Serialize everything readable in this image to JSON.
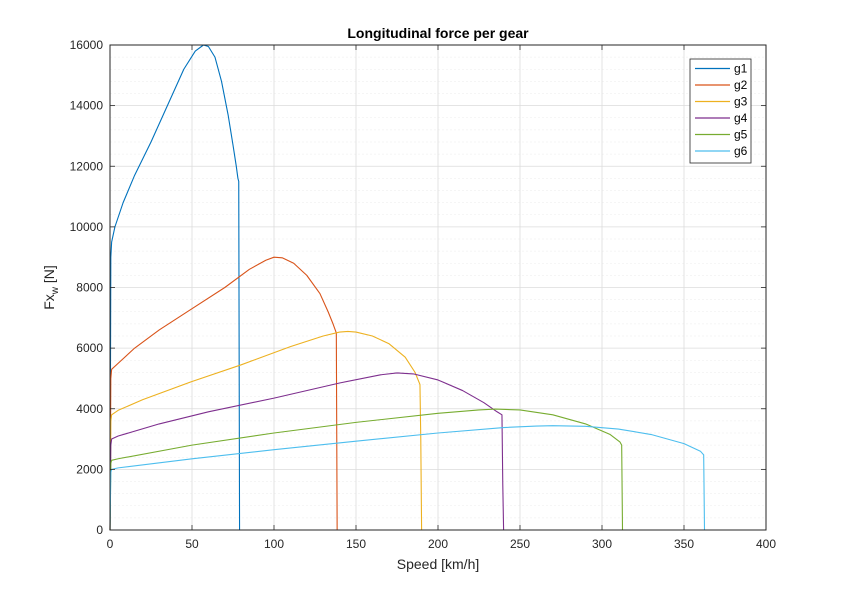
{
  "chart_data": {
    "type": "line",
    "title": "Longitudinal force per gear",
    "xlabel": "Speed [km/h]",
    "ylabel_main": "Fx",
    "ylabel_sub": "w",
    "ylabel_unit": " [N]",
    "xlim": [
      0,
      400
    ],
    "ylim": [
      0,
      16000
    ],
    "xticks": [
      0,
      50,
      100,
      150,
      200,
      250,
      300,
      350,
      400
    ],
    "yticks": [
      0,
      2000,
      4000,
      6000,
      8000,
      10000,
      12000,
      14000,
      16000
    ],
    "grid": "major and minor (y)",
    "legend_position": "top-right",
    "series": [
      {
        "name": "g1",
        "color": "#0072BD",
        "x": [
          0,
          0.5,
          1,
          3,
          8,
          15,
          25,
          35,
          45,
          52,
          57,
          60,
          64,
          68,
          72,
          75,
          77,
          78,
          78.5,
          79,
          80,
          140,
          400
        ],
        "y": [
          0,
          9000,
          9500,
          10000,
          10800,
          11700,
          12800,
          14000,
          15200,
          15800,
          16000,
          15950,
          15600,
          14800,
          13700,
          12700,
          12000,
          11600,
          11500,
          0,
          0,
          0,
          0
        ]
      },
      {
        "name": "g2",
        "color": "#D95319",
        "x": [
          0,
          0.5,
          1,
          5,
          15,
          30,
          50,
          70,
          85,
          95,
          100,
          105,
          112,
          120,
          128,
          133,
          136,
          138,
          138.5,
          139,
          140,
          190
        ],
        "y": [
          0,
          5000,
          5300,
          5500,
          6000,
          6600,
          7300,
          8000,
          8600,
          8900,
          9000,
          8980,
          8800,
          8400,
          7800,
          7200,
          6800,
          6500,
          0,
          0,
          0,
          0
        ]
      },
      {
        "name": "g3",
        "color": "#EDB120",
        "x": [
          0,
          0.5,
          1,
          5,
          20,
          50,
          80,
          110,
          130,
          140,
          145,
          150,
          160,
          170,
          180,
          186,
          189,
          189.5,
          190,
          191,
          240
        ],
        "y": [
          0,
          3600,
          3800,
          3950,
          4300,
          4900,
          5450,
          6050,
          6400,
          6530,
          6550,
          6530,
          6400,
          6150,
          5700,
          5200,
          4800,
          3000,
          0,
          0,
          0
        ]
      },
      {
        "name": "g4",
        "color": "#7E2F8E",
        "x": [
          0,
          0.5,
          1,
          5,
          30,
          60,
          100,
          140,
          165,
          175,
          185,
          200,
          215,
          228,
          236,
          239,
          239.5,
          240,
          241,
          310
        ],
        "y": [
          0,
          2800,
          3000,
          3100,
          3500,
          3900,
          4350,
          4850,
          5120,
          5180,
          5150,
          4950,
          4600,
          4200,
          3900,
          3800,
          1500,
          0,
          0,
          0
        ]
      },
      {
        "name": "g5",
        "color": "#77AC30",
        "x": [
          0,
          0.5,
          1,
          5,
          50,
          100,
          150,
          200,
          225,
          235,
          250,
          270,
          290,
          305,
          311,
          312,
          312.5,
          313,
          314,
          360
        ],
        "y": [
          0,
          2200,
          2300,
          2350,
          2800,
          3200,
          3550,
          3850,
          3960,
          3990,
          3960,
          3800,
          3500,
          3150,
          2900,
          2800,
          0,
          0,
          0,
          0
        ]
      },
      {
        "name": "g6",
        "color": "#4DBEEE",
        "x": [
          0,
          0.5,
          1,
          5,
          50,
          100,
          150,
          200,
          240,
          260,
          270,
          290,
          310,
          330,
          350,
          360,
          362,
          362.5,
          363
        ],
        "y": [
          0,
          1900,
          2000,
          2050,
          2350,
          2650,
          2930,
          3200,
          3380,
          3430,
          3440,
          3420,
          3330,
          3150,
          2850,
          2600,
          2480,
          0,
          0
        ]
      }
    ]
  }
}
